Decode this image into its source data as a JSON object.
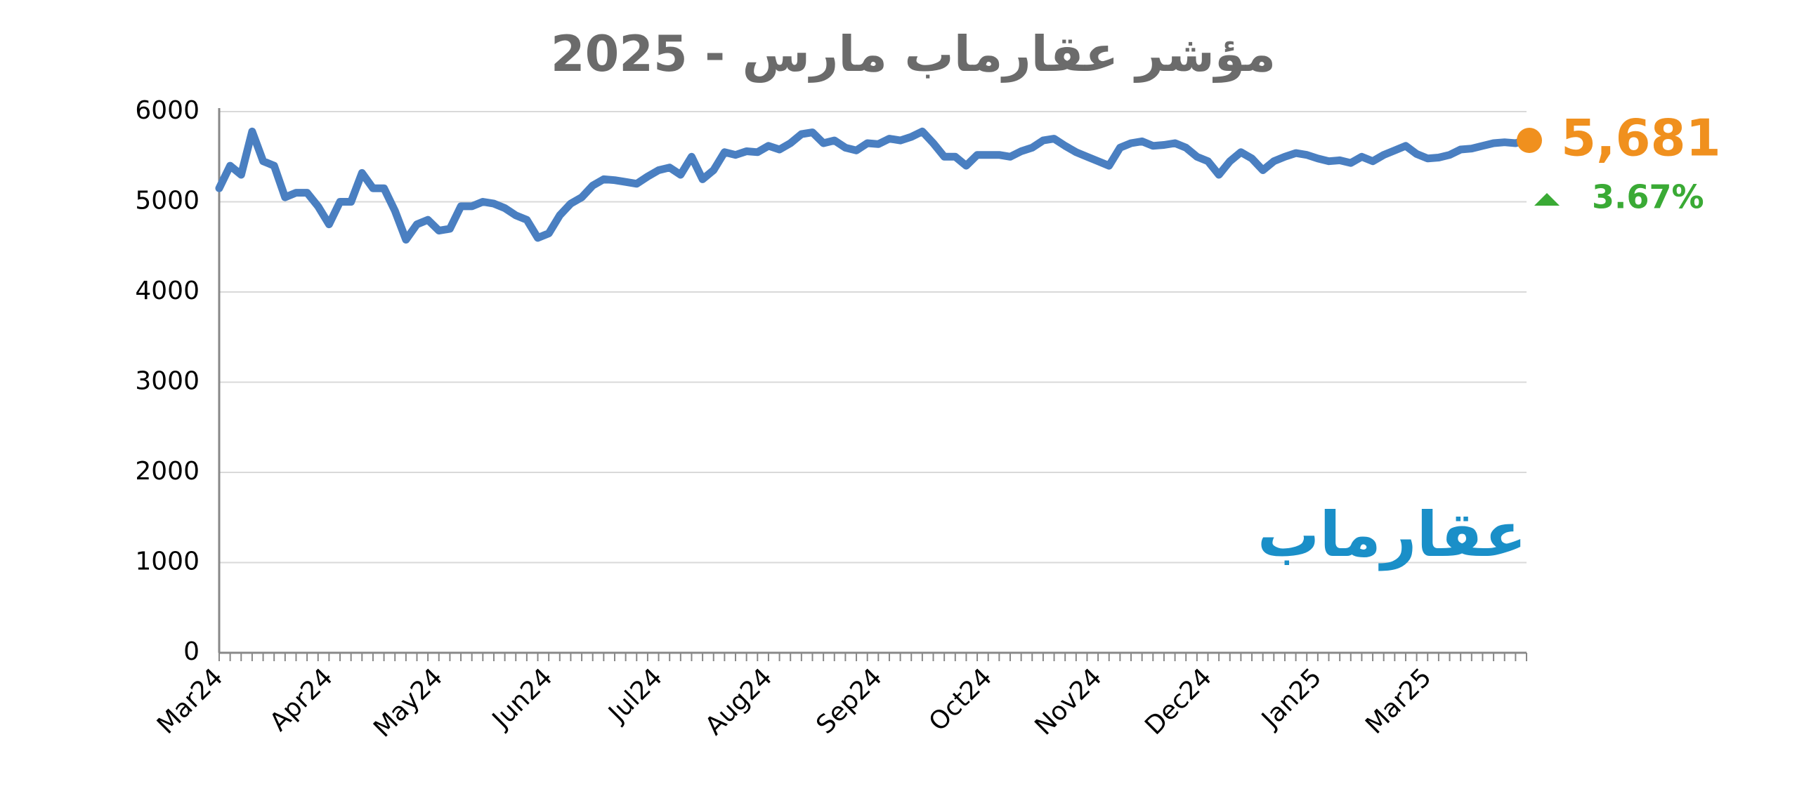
{
  "chart_data": {
    "type": "line",
    "title": "مؤشر عقارماب مارس - 2025",
    "categories": [
      "Mar24",
      null,
      null,
      null,
      null,
      null,
      null,
      null,
      null,
      null,
      "Apr24",
      null,
      null,
      null,
      null,
      null,
      null,
      null,
      null,
      null,
      "May24",
      null,
      null,
      null,
      null,
      null,
      null,
      null,
      null,
      null,
      "Jun24",
      null,
      null,
      null,
      null,
      null,
      null,
      null,
      null,
      null,
      "Jul24",
      null,
      null,
      null,
      null,
      null,
      null,
      null,
      null,
      null,
      "Aug24",
      null,
      null,
      null,
      null,
      null,
      null,
      null,
      null,
      null,
      "Sep24",
      null,
      null,
      null,
      null,
      null,
      null,
      null,
      null,
      null,
      "Oct24",
      null,
      null,
      null,
      null,
      null,
      null,
      null,
      null,
      null,
      "Nov24",
      null,
      null,
      null,
      null,
      null,
      null,
      null,
      null,
      null,
      "Dec24",
      null,
      null,
      null,
      null,
      null,
      null,
      null,
      null,
      null,
      "Jan25",
      null,
      null,
      null,
      null,
      null,
      null,
      null,
      null,
      null,
      "Mar25",
      null,
      null,
      null,
      null,
      null,
      null,
      null,
      null,
      null
    ],
    "values": [
      5150,
      5400,
      5300,
      5780,
      5450,
      5400,
      5050,
      5100,
      5100,
      4950,
      4750,
      5000,
      5000,
      5320,
      5150,
      5150,
      4900,
      4580,
      4750,
      4800,
      4680,
      4700,
      4950,
      4950,
      5000,
      4980,
      4930,
      4850,
      4800,
      4600,
      4650,
      4850,
      4980,
      5050,
      5180,
      5250,
      5240,
      5220,
      5200,
      5280,
      5350,
      5380,
      5300,
      5500,
      5250,
      5350,
      5550,
      5520,
      5560,
      5550,
      5620,
      5580,
      5650,
      5750,
      5770,
      5650,
      5680,
      5600,
      5570,
      5650,
      5640,
      5700,
      5680,
      5720,
      5780,
      5650,
      5500,
      5500,
      5400,
      5520,
      5520,
      5520,
      5500,
      5560,
      5600,
      5680,
      5700,
      5620,
      5550,
      5500,
      5450,
      5400,
      5600,
      5650,
      5670,
      5620,
      5630,
      5650,
      5600,
      5500,
      5450,
      5300,
      5450,
      5550,
      5480,
      5350,
      5450,
      5500,
      5540,
      5520,
      5480,
      5450,
      5460,
      5430,
      5500,
      5450,
      5520,
      5570,
      5620,
      5530,
      5480,
      5490,
      5520,
      5580,
      5590,
      5620,
      5650,
      5660,
      5650,
      5681
    ],
    "color": "#4a7fc1",
    "ylim": [
      0,
      6000
    ],
    "yticks": [
      0,
      1000,
      2000,
      3000,
      4000,
      5000,
      6000
    ],
    "grid": true,
    "annotations": {
      "last_value": "5,681",
      "change": "3.67%",
      "logo": "عقارماب"
    },
    "marker_color": "#f0901e",
    "change_color": "#3aaa35"
  }
}
